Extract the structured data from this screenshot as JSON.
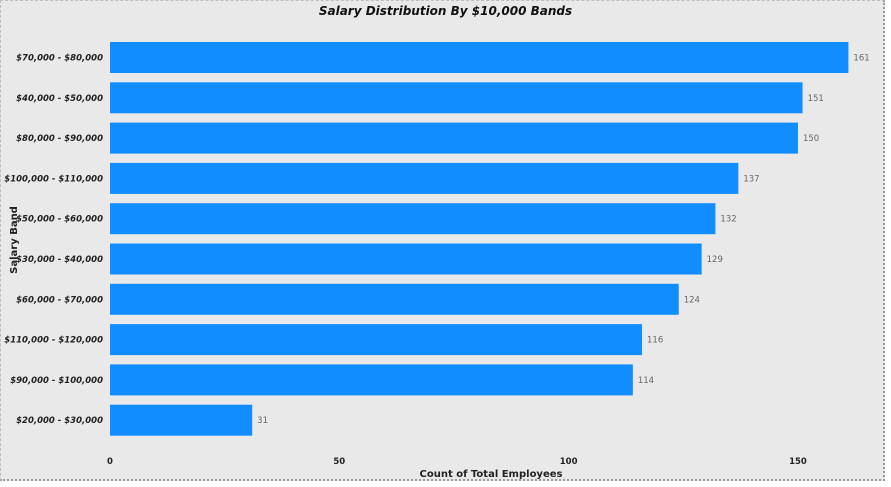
{
  "chart_data": {
    "type": "bar",
    "orientation": "horizontal",
    "title": "Salary Distribution By $10,000 Bands",
    "xlabel": "Count of Total Employees",
    "ylabel": "Salary Band",
    "categories": [
      "$70,000 - $80,000",
      "$40,000 - $50,000",
      "$80,000 - $90,000",
      "$100,000 - $110,000",
      "$50,000 - $60,000",
      "$30,000 - $40,000",
      "$60,000 - $70,000",
      "$110,000 - $120,000",
      "$90,000 - $100,000",
      "$20,000 - $30,000"
    ],
    "values": [
      161,
      151,
      150,
      137,
      132,
      129,
      124,
      116,
      114,
      31
    ],
    "data_labels": [
      "161",
      "151",
      "150",
      "137",
      "132",
      "129",
      "124",
      "116",
      "114",
      "31"
    ],
    "x_ticks": [
      0,
      50,
      100,
      150
    ],
    "x_tick_labels": [
      "0",
      "50",
      "100",
      "150"
    ],
    "xlim": [
      0,
      162
    ],
    "grid": false,
    "legend": "none",
    "colors": {
      "bar": "#118DFF",
      "background": "#E9E9E9"
    }
  }
}
